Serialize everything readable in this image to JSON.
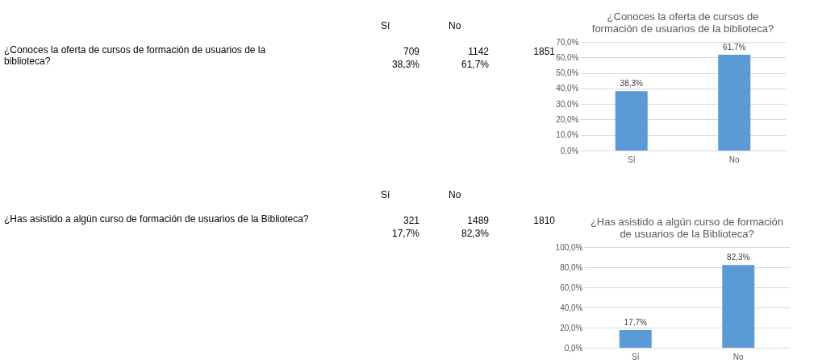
{
  "chart_data": [
    {
      "type": "other",
      "annotations": [
        "¿Conoces la oferta de cursos de formación de usuarios de la\nbiblioteca?",
        "Sí",
        "No",
        "709",
        "1142",
        "1851",
        "38,3%",
        "61,7%"
      ]
    },
    {
      "type": "bar",
      "title": "¿Conoces la oferta de cursos de\nformación de usuarios de la biblioteca?",
      "categories": [
        "Sí",
        "No"
      ],
      "values": [
        38.3,
        61.7
      ],
      "value_labels": [
        "38,3%",
        "61,7%"
      ],
      "color": "#5b9bd5",
      "ylim": [
        0,
        70
      ],
      "yticks": [
        {
          "value": 0,
          "label": "0,0%"
        },
        {
          "value": 10,
          "label": "10,0%"
        },
        {
          "value": 20,
          "label": "20,0%"
        },
        {
          "value": 30,
          "label": "30,0%"
        },
        {
          "value": 40,
          "label": "40,0%"
        },
        {
          "value": 50,
          "label": "50,0%"
        },
        {
          "value": 60,
          "label": "60,0%"
        },
        {
          "value": 70,
          "label": "70,0%"
        }
      ],
      "grid": "y"
    },
    {
      "type": "other",
      "annotations": [
        "¿Has asistido a algún curso de formación de usuarios de la Biblioteca?",
        "Sí",
        "No",
        "321",
        "1489",
        "1810",
        "17,7%",
        "82,3%"
      ]
    },
    {
      "type": "bar",
      "title": "¿Has asistido a algún curso de formación\nde usuarios de la Biblioteca?",
      "categories": [
        "Sí",
        "No"
      ],
      "values": [
        17.7,
        82.3
      ],
      "value_labels": [
        "17,7%",
        "82,3%"
      ],
      "color": "#5b9bd5",
      "ylim": [
        0,
        100
      ],
      "yticks": [
        {
          "value": 0,
          "label": "0,0%"
        },
        {
          "value": 20,
          "label": "20,0%"
        },
        {
          "value": 40,
          "label": "40,0%"
        },
        {
          "value": 60,
          "label": "60,0%"
        },
        {
          "value": 80,
          "label": "80,0%"
        },
        {
          "value": 100,
          "label": "100,0%"
        }
      ],
      "grid": "y"
    }
  ]
}
